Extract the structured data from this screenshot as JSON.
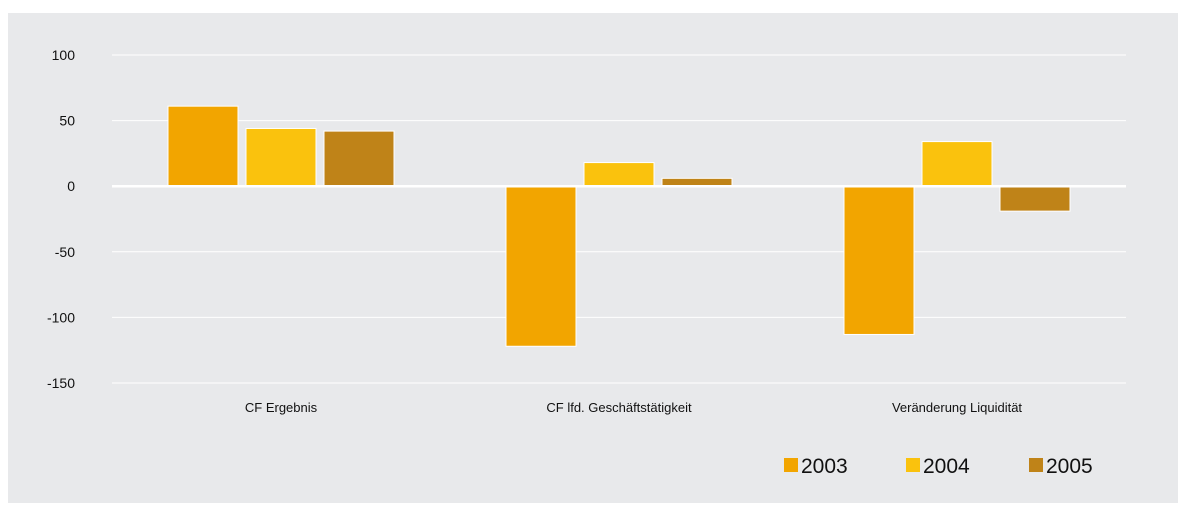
{
  "chart_data": {
    "type": "bar",
    "categories": [
      "CF Ergebnis",
      "CF lfd. Geschäftstätigkeit",
      "Veränderung Liquidität"
    ],
    "series": [
      {
        "name": "2003",
        "color": "#f2a500",
        "values": [
          61,
          -122,
          -113
        ]
      },
      {
        "name": "2004",
        "color": "#fac20d",
        "values": [
          44,
          18,
          34
        ]
      },
      {
        "name": "2005",
        "color": "#bf8318",
        "values": [
          42,
          6,
          -19
        ]
      }
    ],
    "ylim": [
      -150,
      100
    ],
    "yticks": [
      100,
      50,
      0,
      -50,
      -100,
      -150
    ],
    "ytick_labels": [
      "100",
      "50",
      "0",
      "-50",
      "-100",
      "-150"
    ],
    "grid": true,
    "legend": "bottom-right",
    "title": "",
    "xlabel": "",
    "ylabel": ""
  }
}
